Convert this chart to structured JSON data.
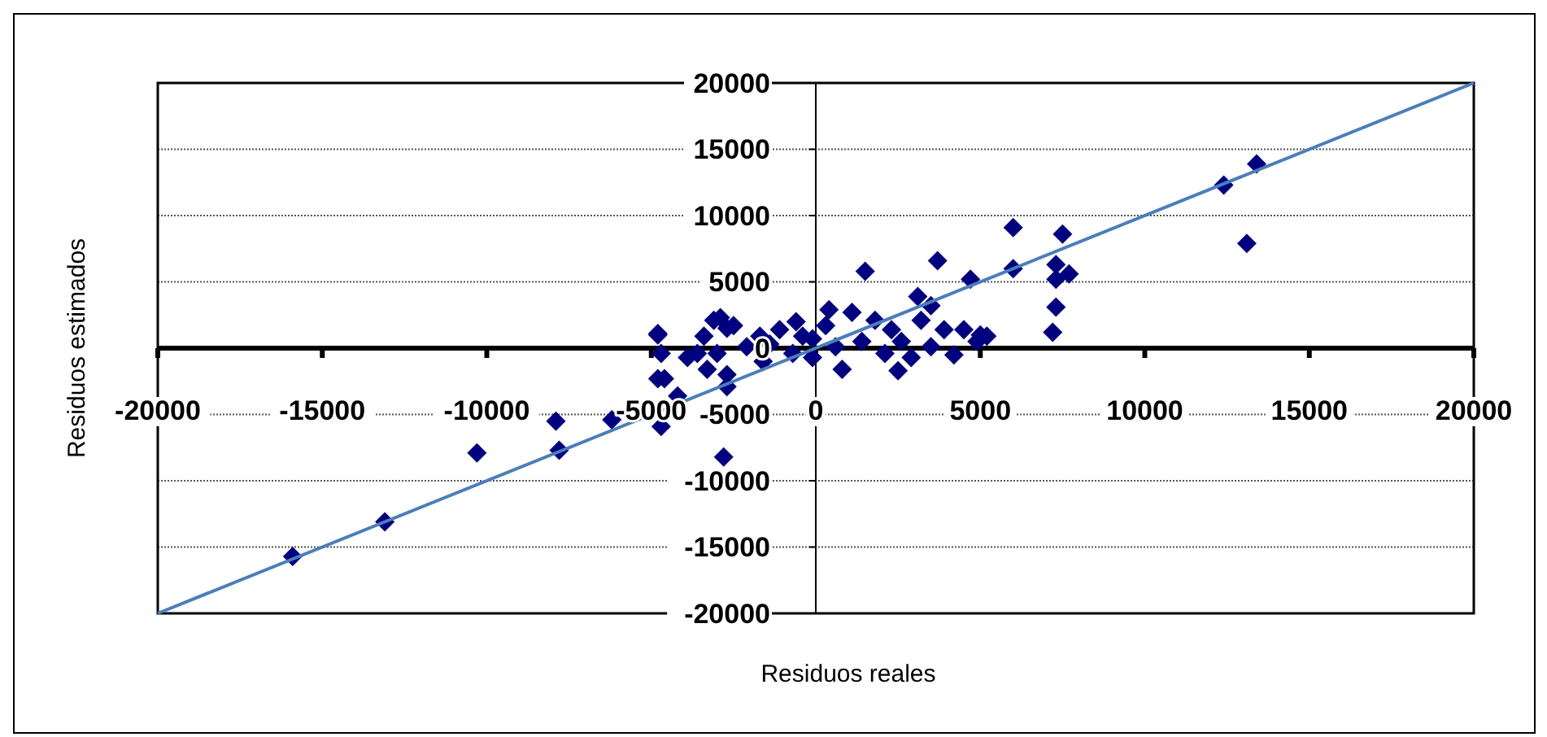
{
  "chart_data": {
    "type": "scatter",
    "xlabel": "Residuos reales",
    "ylabel": "Residuos estimados",
    "xlim": [
      -20000,
      20000
    ],
    "ylim": [
      -20000,
      20000
    ],
    "xticks": [
      -20000,
      -15000,
      -10000,
      -5000,
      0,
      5000,
      10000,
      15000,
      20000
    ],
    "yticks": [
      -20000,
      -15000,
      -10000,
      -5000,
      0,
      5000,
      10000,
      15000,
      20000
    ],
    "grid": "y",
    "series": [
      {
        "marker": "diamond",
        "color": "#000080",
        "x": [
          -15900,
          -13100,
          -10300,
          -7900,
          -7800,
          -6200,
          -4800,
          -4800,
          -4700,
          -2800,
          13400,
          12400,
          13100,
          6000,
          3700,
          1500,
          4700,
          6000,
          7500,
          7300,
          7300,
          7700,
          7300,
          7200,
          5200,
          5000,
          4200,
          3100,
          3500,
          -4800,
          -4700,
          -4600,
          -4200,
          -3900,
          -3400,
          -3100,
          -2900,
          -2700,
          -2500,
          -3000,
          -2700,
          -2700,
          -3300,
          -3600,
          -2100,
          -1700,
          -1600,
          -1100,
          -700,
          -400,
          -100,
          300,
          400,
          600,
          800,
          1100,
          1400,
          1800,
          2100,
          2300,
          2500,
          2600,
          2900,
          3200,
          3500,
          3900,
          4500,
          4900,
          -100,
          -600,
          -1400
        ],
        "values": [
          -15700,
          -13100,
          -7900,
          -5500,
          -7700,
          -5400,
          -2300,
          1000,
          -5900,
          -8200,
          13900,
          12300,
          7900,
          9100,
          6600,
          5800,
          5200,
          6000,
          8600,
          6300,
          5200,
          5600,
          3100,
          1200,
          900,
          1000,
          -500,
          3900,
          3200,
          1100,
          -400,
          -2300,
          -3600,
          -700,
          900,
          2100,
          2300,
          1500,
          1700,
          -400,
          -2000,
          -2900,
          -1600,
          -400,
          100,
          900,
          -1000,
          1400,
          -400,
          900,
          -700,
          1700,
          2900,
          100,
          -1600,
          2700,
          500,
          2100,
          -400,
          1400,
          -1700,
          500,
          -700,
          2100,
          100,
          1400,
          1400,
          500,
          700,
          2000,
          300
        ]
      },
      {
        "type": "line",
        "marker": "none",
        "line_style": "solid",
        "color": "#4a7ebb",
        "x": [
          -20000,
          20000
        ],
        "values": [
          -20000,
          20000
        ]
      }
    ]
  }
}
